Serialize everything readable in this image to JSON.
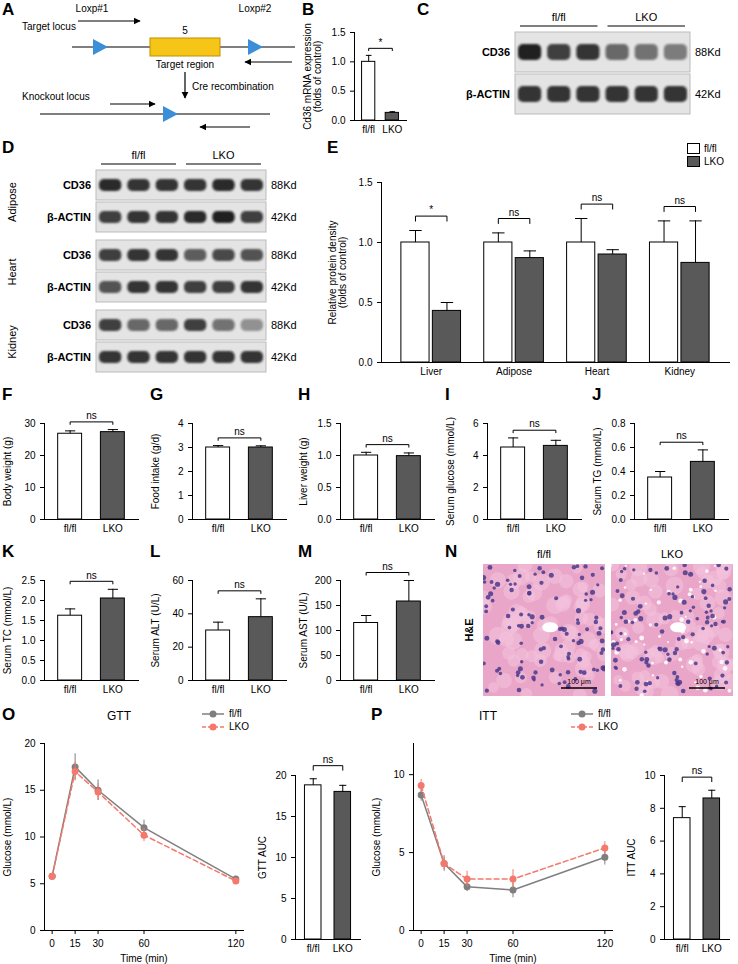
{
  "chart_data": [
    {
      "panel": "B",
      "type": "bar",
      "categories": [
        "fl/fl",
        "LKO"
      ],
      "values": [
        1.0,
        0.13
      ],
      "errors": [
        0.11,
        0.02
      ],
      "colors": [
        "#ffffff",
        "#595959"
      ],
      "ylabel": "Cd36 mRNA expression\n(folds of control)",
      "ylim": [
        0,
        1.5
      ],
      "yticks": [
        {
          "value": 0,
          "label": "0.0"
        },
        0.5,
        {
          "value": 1,
          "label": "1.0"
        },
        1.5
      ],
      "significance": [
        {
          "from": "fl/fl",
          "to": "LKO",
          "label": "*"
        }
      ]
    },
    {
      "panel": "E",
      "type": "bar",
      "categories": [
        "Liver",
        "Adipose",
        "Heart",
        "Kidney"
      ],
      "series": [
        {
          "name": "fl/fl",
          "color": "#ffffff",
          "values": [
            1.0,
            1.0,
            1.0,
            1.0
          ],
          "errors": [
            0.1,
            0.08,
            0.2,
            0.18
          ]
        },
        {
          "name": "LKO",
          "color": "#595959",
          "values": [
            0.43,
            0.87,
            0.9,
            0.83
          ],
          "errors": [
            0.07,
            0.06,
            0.04,
            0.35
          ]
        }
      ],
      "ylabel": "Relative protein density\n(folds of control)",
      "ylim": [
        0,
        1.5
      ],
      "yticks": [
        {
          "value": 0,
          "label": "0.0"
        },
        0.5,
        {
          "value": 1,
          "label": "1.0"
        },
        1.5
      ],
      "legend": "top-right",
      "significance": [
        {
          "category": "Liver",
          "label": "*"
        },
        {
          "category": "Adipose",
          "label": "ns"
        },
        {
          "category": "Heart",
          "label": "ns"
        },
        {
          "category": "Kidney",
          "label": "ns"
        }
      ]
    },
    {
      "panel": "F",
      "type": "bar",
      "categories": [
        "fl/fl",
        "LKO"
      ],
      "values": [
        26.8,
        27.3
      ],
      "errors": [
        0.9,
        0.8
      ],
      "colors": [
        "#ffffff",
        "#595959"
      ],
      "ylabel": "Body weight (g)",
      "ylim": [
        0,
        30
      ],
      "yticks": [
        0,
        10,
        20,
        30
      ],
      "significance": [
        {
          "from": "fl/fl",
          "to": "LKO",
          "label": "ns"
        }
      ]
    },
    {
      "panel": "G",
      "type": "bar",
      "categories": [
        "fl/fl",
        "LKO"
      ],
      "values": [
        3.0,
        3.0
      ],
      "errors": [
        0.08,
        0.07
      ],
      "colors": [
        "#ffffff",
        "#595959"
      ],
      "ylabel": "Food intake (g/d)",
      "ylim": [
        0,
        4
      ],
      "yticks": [
        0,
        1,
        2,
        3,
        4
      ],
      "significance": [
        {
          "from": "fl/fl",
          "to": "LKO",
          "label": "ns"
        }
      ]
    },
    {
      "panel": "H",
      "type": "bar",
      "categories": [
        "fl/fl",
        "LKO"
      ],
      "values": [
        1.0,
        0.99
      ],
      "errors": [
        0.05,
        0.05
      ],
      "colors": [
        "#ffffff",
        "#595959"
      ],
      "ylabel": "Liver weight (g)",
      "ylim": [
        0,
        1.5
      ],
      "yticks": [
        {
          "value": 0,
          "label": "0.0"
        },
        0.5,
        {
          "value": 1,
          "label": "1.0"
        },
        1.5
      ],
      "significance": [
        {
          "from": "fl/fl",
          "to": "LKO",
          "label": "ns"
        }
      ]
    },
    {
      "panel": "I",
      "type": "bar",
      "categories": [
        "fl/fl",
        "LKO"
      ],
      "values": [
        4.5,
        4.6
      ],
      "errors": [
        0.6,
        0.35
      ],
      "colors": [
        "#ffffff",
        "#595959"
      ],
      "ylabel": "Serum glucose (mmol/L)",
      "ylim": [
        0,
        6
      ],
      "yticks": [
        0,
        2,
        4,
        6
      ],
      "significance": [
        {
          "from": "fl/fl",
          "to": "LKO",
          "label": "ns"
        }
      ]
    },
    {
      "panel": "J",
      "type": "bar",
      "categories": [
        "fl/fl",
        "LKO"
      ],
      "values": [
        0.35,
        0.48
      ],
      "errors": [
        0.05,
        0.1
      ],
      "colors": [
        "#ffffff",
        "#595959"
      ],
      "ylabel": "Serum TG (mmol/L)",
      "ylim": [
        0,
        0.8
      ],
      "yticks": [
        {
          "value": 0,
          "label": "0.0"
        },
        0.2,
        0.4,
        0.6,
        0.8
      ],
      "significance": [
        {
          "from": "fl/fl",
          "to": "LKO",
          "label": "ns"
        }
      ]
    },
    {
      "panel": "K",
      "type": "bar",
      "categories": [
        "fl/fl",
        "LKO"
      ],
      "values": [
        1.62,
        2.05
      ],
      "errors": [
        0.17,
        0.23
      ],
      "colors": [
        "#ffffff",
        "#595959"
      ],
      "ylabel": "Serum TC (mmol/L)",
      "ylim": [
        0,
        2.5
      ],
      "yticks": [
        {
          "value": 0,
          "label": "0.0"
        },
        0.5,
        {
          "value": 1,
          "label": "1.0"
        },
        1.5,
        {
          "value": 2,
          "label": "2.0"
        },
        2.5
      ],
      "significance": [
        {
          "from": "fl/fl",
          "to": "LKO",
          "label": "ns"
        }
      ]
    },
    {
      "panel": "L",
      "type": "bar",
      "categories": [
        "fl/fl",
        "LKO"
      ],
      "values": [
        30,
        38
      ],
      "errors": [
        5,
        11
      ],
      "colors": [
        "#ffffff",
        "#595959"
      ],
      "ylabel": "Serum ALT (U/L)",
      "ylim": [
        0,
        60
      ],
      "yticks": [
        0,
        20,
        40,
        60
      ],
      "significance": [
        {
          "from": "fl/fl",
          "to": "LKO",
          "label": "ns"
        }
      ]
    },
    {
      "panel": "M",
      "type": "bar",
      "categories": [
        "fl/fl",
        "LKO"
      ],
      "values": [
        115,
        158
      ],
      "errors": [
        15,
        42
      ],
      "colors": [
        "#ffffff",
        "#595959"
      ],
      "ylabel": "Serum AST (U/L)",
      "ylim": [
        0,
        200
      ],
      "yticks": [
        0,
        50,
        100,
        150,
        200
      ],
      "significance": [
        {
          "from": "fl/fl",
          "to": "LKO",
          "label": "ns"
        }
      ]
    },
    {
      "panel": "O",
      "type": "line",
      "title": "GTT",
      "x": [
        0,
        15,
        30,
        60,
        120
      ],
      "series": [
        {
          "name": "fl/fl",
          "color": "#7f7f7f",
          "line_style": "solid",
          "marker": "circle",
          "values": [
            5.8,
            17.5,
            15.0,
            11.0,
            5.5
          ],
          "errors": [
            0.3,
            1.4,
            1.1,
            0.8,
            0.3
          ]
        },
        {
          "name": "LKO",
          "color": "#f4786c",
          "line_style": "dashed",
          "marker": "circle",
          "values": [
            5.8,
            17.0,
            14.8,
            10.2,
            5.3
          ],
          "errors": [
            0.2,
            1.0,
            0.9,
            0.7,
            0.3
          ]
        }
      ],
      "xlabel": "Time (min)",
      "ylabel": "Glucose (mmol/L)",
      "xlim": [
        -5,
        125
      ],
      "xticks": [
        0,
        15,
        30,
        60,
        120
      ],
      "ylim": [
        0,
        20
      ],
      "yticks": [
        0,
        5,
        10,
        15,
        20
      ],
      "legend": "top-right"
    },
    {
      "type": "bar",
      "categories": [
        "fl/fl",
        "LKO"
      ],
      "values": [
        18.8,
        18.0
      ],
      "errors": [
        0.8,
        0.8
      ],
      "colors": [
        "#ffffff",
        "#595959"
      ],
      "ylabel": "GTT AUC",
      "ylim": [
        0,
        20
      ],
      "yticks": [
        0,
        5,
        10,
        15,
        20
      ],
      "significance": [
        {
          "from": "fl/fl",
          "to": "LKO",
          "label": "ns"
        }
      ]
    },
    {
      "panel": "P",
      "type": "line",
      "title": "ITT",
      "x": [
        0,
        15,
        30,
        60,
        120
      ],
      "series": [
        {
          "name": "fl/fl",
          "color": "#7f7f7f",
          "line_style": "solid",
          "marker": "circle",
          "values": [
            8.7,
            4.3,
            2.8,
            2.6,
            4.7
          ],
          "errors": [
            0.4,
            0.5,
            0.3,
            0.5,
            0.5
          ]
        },
        {
          "name": "LKO",
          "color": "#f4786c",
          "line_style": "dashed",
          "marker": "circle",
          "values": [
            9.3,
            4.3,
            3.3,
            3.3,
            5.3
          ],
          "errors": [
            0.4,
            0.4,
            0.5,
            0.6,
            0.4
          ]
        }
      ],
      "xlabel": "Time (min)",
      "ylabel": "Glucose (mmol/L)",
      "xlim": [
        -5,
        125
      ],
      "xticks": [
        0,
        15,
        30,
        60,
        120
      ],
      "ylim": [
        0,
        12
      ],
      "yticks": [
        0,
        5,
        10
      ],
      "legend": "top-right"
    },
    {
      "type": "bar",
      "categories": [
        "fl/fl",
        "LKO"
      ],
      "values": [
        7.4,
        8.6
      ],
      "errors": [
        0.7,
        0.5
      ],
      "colors": [
        "#ffffff",
        "#595959"
      ],
      "ylabel": "ITT AUC",
      "ylim": [
        0,
        10
      ],
      "yticks": [
        0,
        2,
        4,
        6,
        8,
        10
      ],
      "significance": [
        {
          "from": "fl/fl",
          "to": "LKO",
          "label": "ns"
        }
      ]
    }
  ],
  "diagram": {
    "panel": "A",
    "target_locus": "Target locus",
    "loxp": [
      "Loxp#1",
      "Loxp#2"
    ],
    "exon": "5",
    "exon_label": "Target region",
    "step": "Cre recombination",
    "knockout_locus": "Knockout locus"
  },
  "blots": [
    {
      "panel": "C",
      "groups": [
        "fl/fl",
        "LKO"
      ],
      "lanes_per_group": 3,
      "rows": [
        {
          "label": "CD36",
          "size": "88Kd",
          "intensity": [
            0.95,
            0.8,
            0.85,
            0.6,
            0.55,
            0.5
          ]
        },
        {
          "label": "β-ACTIN",
          "size": "42Kd",
          "intensity": [
            0.85,
            0.85,
            0.85,
            0.85,
            0.85,
            0.85
          ]
        }
      ]
    },
    {
      "panel": "D",
      "groups": [
        "fl/fl",
        "LKO"
      ],
      "lanes_per_group": 3,
      "sections": [
        {
          "tissue": "Adipose",
          "rows": [
            {
              "label": "CD36",
              "size": "88Kd",
              "intensity": [
                0.9,
                0.85,
                0.85,
                0.85,
                0.9,
                0.85
              ]
            },
            {
              "label": "β-ACTIN",
              "size": "42Kd",
              "intensity": [
                0.8,
                0.85,
                0.85,
                0.9,
                0.95,
                0.8
              ]
            }
          ]
        },
        {
          "tissue": "Heart",
          "rows": [
            {
              "label": "CD36",
              "size": "88Kd",
              "intensity": [
                0.8,
                0.85,
                0.85,
                0.65,
                0.75,
                0.7
              ]
            },
            {
              "label": "β-ACTIN",
              "size": "42Kd",
              "intensity": [
                0.7,
                0.85,
                0.85,
                0.8,
                0.8,
                0.85
              ]
            }
          ]
        },
        {
          "tissue": "Kidney",
          "rows": [
            {
              "label": "CD36",
              "size": "88Kd",
              "intensity": [
                0.8,
                0.6,
                0.6,
                0.8,
                0.55,
                0.4
              ]
            },
            {
              "label": "β-ACTIN",
              "size": "42Kd",
              "intensity": [
                0.85,
                0.85,
                0.85,
                0.85,
                0.85,
                0.85
              ]
            }
          ]
        }
      ]
    }
  ],
  "histology": {
    "panel": "N",
    "stain": "H&E",
    "groups": [
      "fl/fl",
      "LKO"
    ],
    "scale_bar": "100 μm"
  }
}
